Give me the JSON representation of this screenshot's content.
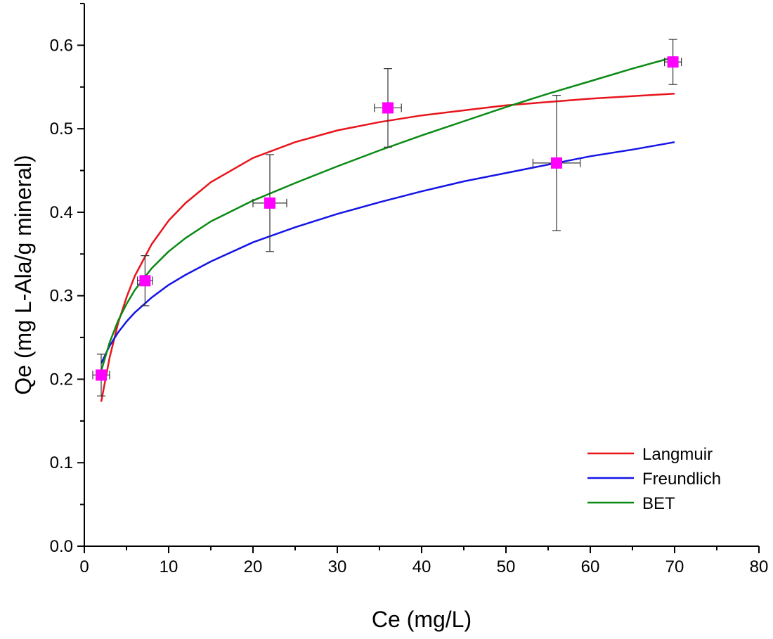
{
  "chart_data": {
    "type": "scatter",
    "xlabel": "Ce (mg/L)",
    "ylabel": "Qe (mg L-Ala/g mineral)",
    "xlim": [
      0,
      80
    ],
    "ylim": [
      0,
      0.65
    ],
    "x_ticks": [
      0,
      10,
      20,
      30,
      40,
      50,
      60,
      70,
      80
    ],
    "x_tick_labels": [
      "0",
      "10",
      "20",
      "30",
      "40",
      "50",
      "60",
      "70",
      "80"
    ],
    "y_ticks": [
      0.0,
      0.1,
      0.2,
      0.3,
      0.4,
      0.5,
      0.6
    ],
    "y_tick_labels": [
      "0.0",
      "0.1",
      "0.2",
      "0.3",
      "0.4",
      "0.5",
      "0.6"
    ],
    "grid": false,
    "legend_position": "bottom-right",
    "points": {
      "color": "#ff00ff",
      "data": [
        {
          "x": 2.0,
          "y": 0.205,
          "xerr": 1.0,
          "yerr": 0.025
        },
        {
          "x": 7.2,
          "y": 0.318,
          "xerr": 0.9,
          "yerr": 0.03
        },
        {
          "x": 22.0,
          "y": 0.411,
          "xerr": 2.0,
          "yerr": 0.058
        },
        {
          "x": 36.0,
          "y": 0.525,
          "xerr": 1.6,
          "yerr": 0.047
        },
        {
          "x": 56.0,
          "y": 0.459,
          "xerr": 2.8,
          "yerr": 0.081
        },
        {
          "x": 69.8,
          "y": 0.58,
          "xerr": 1.0,
          "yerr": 0.027
        }
      ]
    },
    "series": [
      {
        "name": "Langmuir",
        "color": "#e8141c",
        "x": [
          2,
          3,
          4,
          5,
          6,
          8,
          10,
          12,
          15,
          20,
          25,
          30,
          35,
          40,
          45,
          50,
          55,
          60,
          65,
          70
        ],
        "y": [
          0.173,
          0.226,
          0.267,
          0.298,
          0.324,
          0.362,
          0.39,
          0.411,
          0.436,
          0.465,
          0.484,
          0.498,
          0.508,
          0.516,
          0.522,
          0.528,
          0.532,
          0.536,
          0.539,
          0.542
        ]
      },
      {
        "name": "Freundlich",
        "color": "#1414e6",
        "x": [
          2,
          3,
          4,
          5,
          6,
          8,
          10,
          12,
          15,
          20,
          25,
          30,
          35,
          40,
          45,
          50,
          55,
          60,
          65,
          70
        ],
        "y": [
          0.219,
          0.24,
          0.256,
          0.269,
          0.28,
          0.298,
          0.313,
          0.325,
          0.341,
          0.364,
          0.382,
          0.398,
          0.412,
          0.425,
          0.437,
          0.447,
          0.457,
          0.467,
          0.475,
          0.484
        ]
      },
      {
        "name": "BET",
        "color": "#0a8a14",
        "x": [
          2,
          3,
          4,
          5,
          6,
          8,
          10,
          12,
          15,
          20,
          25,
          30,
          35,
          40,
          45,
          50,
          55,
          60,
          65,
          70
        ],
        "y": [
          0.21,
          0.244,
          0.27,
          0.29,
          0.307,
          0.333,
          0.353,
          0.369,
          0.389,
          0.414,
          0.435,
          0.455,
          0.474,
          0.492,
          0.509,
          0.526,
          0.542,
          0.557,
          0.572,
          0.586
        ]
      }
    ]
  }
}
